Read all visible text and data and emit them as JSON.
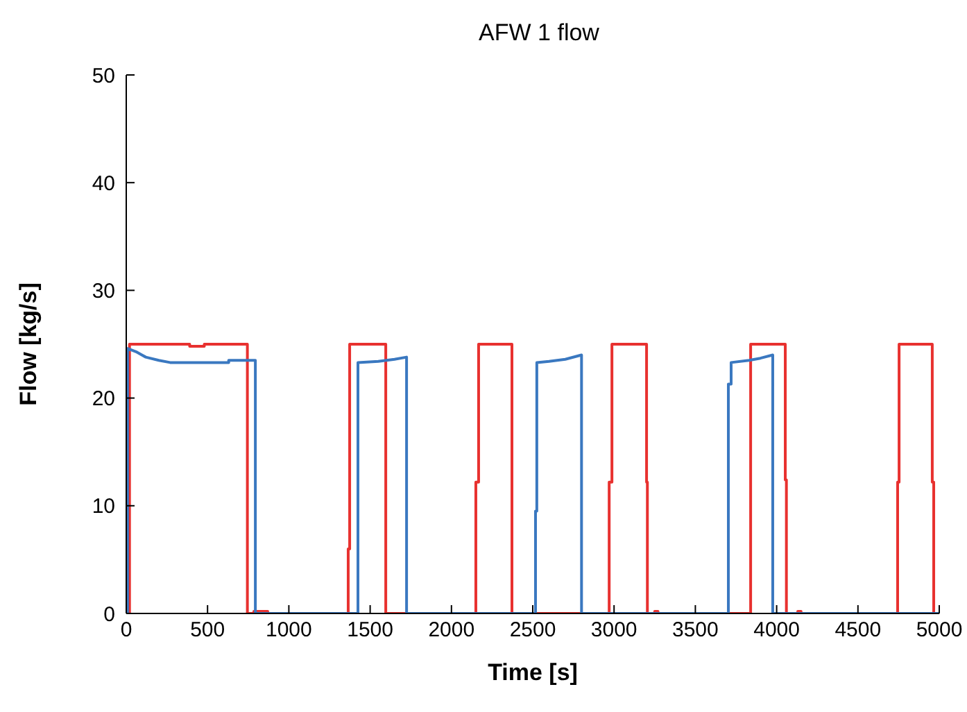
{
  "chart_data": {
    "type": "line",
    "title": "AFW 1 flow",
    "xlabel": "Time [s]",
    "ylabel": "Flow [kg/s]",
    "xlim": [
      0,
      5000
    ],
    "xticks": [
      0,
      500,
      1000,
      1500,
      2000,
      2500,
      3000,
      3500,
      4000,
      4500,
      5000
    ],
    "ylim": [
      0,
      50
    ],
    "yticks": [
      0,
      10,
      20,
      30,
      40,
      50
    ],
    "grid": false,
    "legend": false,
    "marker": "none",
    "line_style": "solid",
    "series": [
      {
        "color": "#e8312f",
        "x": [
          0,
          5,
          5,
          10,
          10,
          20,
          20,
          390,
          390,
          480,
          480,
          745,
          745,
          785,
          785,
          870,
          870,
          1365,
          1365,
          1374,
          1374,
          1596,
          1596,
          2150,
          2150,
          2167,
          2167,
          2372,
          2372,
          2970,
          2970,
          2987,
          2987,
          3200,
          3200,
          3205,
          3205,
          3250,
          3250,
          3270,
          3270,
          3840,
          3840,
          4053,
          4053,
          4060,
          4060,
          4130,
          4130,
          4150,
          4150,
          4744,
          4744,
          4753,
          4753,
          4957,
          4957,
          4966,
          4966,
          5000
        ],
        "values": [
          0,
          0,
          2.5,
          2.5,
          0,
          0,
          25,
          25,
          24.8,
          24.8,
          25,
          25,
          0,
          0,
          0.2,
          0.2,
          0,
          0,
          6,
          6,
          25,
          25,
          0,
          0,
          12.2,
          12.2,
          25,
          25,
          0,
          0,
          12.2,
          12.2,
          25,
          25,
          12.2,
          12.2,
          0,
          0,
          0.2,
          0.2,
          0,
          0,
          25,
          25,
          12.4,
          12.4,
          0,
          0,
          0.2,
          0.2,
          0,
          0,
          12.2,
          12.2,
          25,
          25,
          12.2,
          12.2,
          0,
          0
        ]
      },
      {
        "color": "#3a78c0",
        "x": [
          0,
          8,
          8,
          60,
          120,
          200,
          270,
          630,
          630,
          794,
          794,
          1425,
          1425,
          1550,
          1650,
          1724,
          1724,
          2517,
          2517,
          2525,
          2525,
          2600,
          2700,
          2800,
          2800,
          3703,
          3703,
          3720,
          3720,
          3830,
          3900,
          3976,
          3976,
          5000
        ],
        "values": [
          0,
          0,
          24.6,
          24.3,
          23.8,
          23.5,
          23.3,
          23.3,
          23.5,
          23.5,
          0,
          0,
          23.3,
          23.4,
          23.6,
          23.8,
          0,
          0,
          9.5,
          9.5,
          23.3,
          23.4,
          23.6,
          24,
          0,
          0,
          21.3,
          21.3,
          23.3,
          23.5,
          23.7,
          24,
          0,
          0
        ]
      }
    ]
  }
}
